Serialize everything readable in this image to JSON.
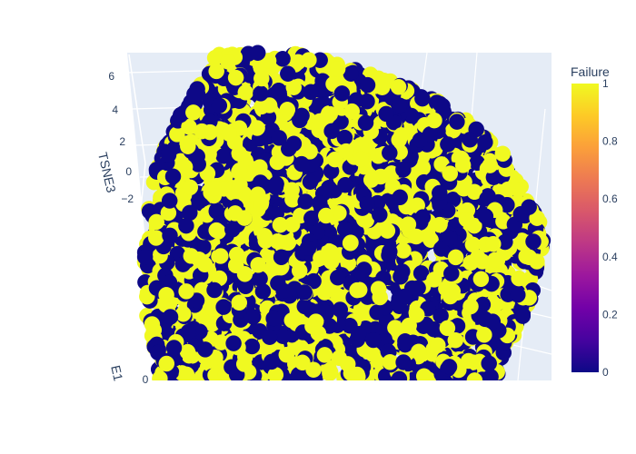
{
  "chart_data": {
    "type": "scatter",
    "projection": "3d",
    "axes": {
      "z": {
        "label": "TSNE3",
        "ticks": [
          "6",
          "4",
          "2",
          "0",
          "−2"
        ]
      },
      "x": {
        "label": "E1",
        "ticks": [
          "0"
        ]
      }
    },
    "color_variable": "Failure",
    "colorbar": {
      "title": "Failure",
      "range": [
        0,
        1
      ],
      "ticks": [
        "1",
        "0.8",
        "0.6",
        "0.4",
        "0.2",
        "0"
      ],
      "colorscale": [
        "#0d0887",
        "#46039f",
        "#7201a8",
        "#9c179e",
        "#bd3786",
        "#d8576b",
        "#ed7953",
        "#fb9f3a",
        "#fdca26",
        "#f0f921"
      ]
    },
    "categories": [
      0,
      1
    ],
    "category_colors": [
      "#0d0887",
      "#f0f921"
    ]
  }
}
